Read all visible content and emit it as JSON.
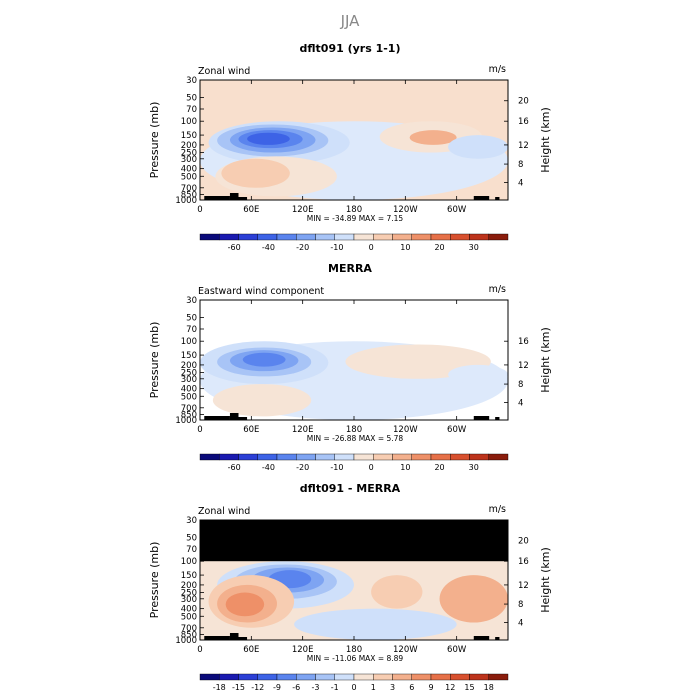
{
  "main_title": "JJA",
  "chart_data": [
    {
      "type": "heatmap",
      "title": "dflt091 (yrs 1-1)",
      "left_label": "Zonal wind",
      "units": "m/s",
      "ylabel": "Pressure (mb)",
      "ylabel_right": "Height (km)",
      "pressure_ticks": [
        "30",
        "50",
        "70",
        "100",
        "150",
        "200",
        "250",
        "300",
        "400",
        "500",
        "700",
        "850",
        "1000"
      ],
      "height_ticks": [
        "20",
        "16",
        "12",
        "8",
        "4"
      ],
      "lon_ticks": [
        "0",
        "60E",
        "120E",
        "180",
        "120W",
        "60W"
      ],
      "stats_text": "MIN = -34.89   MAX =   7.15",
      "colorbar_labels": [
        "-60",
        "-40",
        "-20",
        "-10",
        "0",
        "10",
        "20",
        "30"
      ],
      "colorbar_colors": [
        "#0a0a7a",
        "#1a1ab0",
        "#2b3fd6",
        "#3d63e6",
        "#5a84ee",
        "#7ea4f2",
        "#a8c4f6",
        "#cfe0fa",
        "#f6e4d6",
        "#f7cdb2",
        "#f3b08d",
        "#ee9068",
        "#e67048",
        "#d8502e",
        "#bd331b",
        "#8a1c0c"
      ],
      "field": {
        "base": "#f8dfcd",
        "blobs": [
          {
            "lon": 0,
            "lon2": 360,
            "p": 1000,
            "p2": 100,
            "c": "#dde9fb"
          },
          {
            "lon": 10,
            "lon2": 175,
            "p": 350,
            "p2": 100,
            "c": "#cfe0fa"
          },
          {
            "lon": 20,
            "lon2": 150,
            "p": 280,
            "p2": 110,
            "c": "#a8c4f6"
          },
          {
            "lon": 35,
            "lon2": 135,
            "p": 250,
            "p2": 120,
            "c": "#7ea4f2"
          },
          {
            "lon": 45,
            "lon2": 120,
            "p": 220,
            "p2": 130,
            "c": "#5a84ee"
          },
          {
            "lon": 55,
            "lon2": 105,
            "p": 200,
            "p2": 140,
            "c": "#3d63e6"
          },
          {
            "lon": 18,
            "lon2": 160,
            "p": 900,
            "p2": 280,
            "c": "#f6e4d6"
          },
          {
            "lon": 25,
            "lon2": 105,
            "p": 700,
            "p2": 300,
            "c": "#f7cdb2"
          },
          {
            "lon": 210,
            "lon2": 330,
            "p": 250,
            "p2": 100,
            "c": "#f6e4d6"
          },
          {
            "lon": 245,
            "lon2": 300,
            "p": 200,
            "p2": 130,
            "c": "#f3b08d"
          },
          {
            "lon": 290,
            "lon2": 360,
            "p": 300,
            "p2": 150,
            "c": "#cfe0fa"
          }
        ]
      }
    },
    {
      "type": "heatmap",
      "title": "MERRA",
      "left_label": "Eastward wind component",
      "units": "m/s",
      "ylabel": "Pressure (mb)",
      "ylabel_right": "Height (km)",
      "pressure_ticks": [
        "30",
        "50",
        "70",
        "100",
        "150",
        "200",
        "250",
        "300",
        "400",
        "500",
        "700",
        "850",
        "1000"
      ],
      "height_ticks": [
        "16",
        "12",
        "8",
        "4"
      ],
      "lon_ticks": [
        "0",
        "60E",
        "120E",
        "180",
        "120W",
        "60W"
      ],
      "stats_text": "MIN = -26.88   MAX =   5.78",
      "colorbar_labels": [
        "-60",
        "-40",
        "-20",
        "-10",
        "0",
        "10",
        "20",
        "30"
      ],
      "colorbar_colors": [
        "#0a0a7a",
        "#1a1ab0",
        "#2b3fd6",
        "#3d63e6",
        "#5a84ee",
        "#7ea4f2",
        "#a8c4f6",
        "#cfe0fa",
        "#f6e4d6",
        "#f7cdb2",
        "#f3b08d",
        "#ee9068",
        "#e67048",
        "#d8502e",
        "#bd331b",
        "#8a1c0c"
      ],
      "field": {
        "base": "#ffffff",
        "blobs": [
          {
            "lon": 0,
            "lon2": 360,
            "p": 1000,
            "p2": 100,
            "c": "#dde9fb"
          },
          {
            "lon": 0,
            "lon2": 150,
            "p": 350,
            "p2": 100,
            "c": "#cfe0fa"
          },
          {
            "lon": 20,
            "lon2": 130,
            "p": 280,
            "p2": 120,
            "c": "#a8c4f6"
          },
          {
            "lon": 35,
            "lon2": 115,
            "p": 240,
            "p2": 130,
            "c": "#7ea4f2"
          },
          {
            "lon": 50,
            "lon2": 100,
            "p": 210,
            "p2": 140,
            "c": "#5a84ee"
          },
          {
            "lon": 15,
            "lon2": 130,
            "p": 900,
            "p2": 350,
            "c": "#f6e4d6"
          },
          {
            "lon": 170,
            "lon2": 340,
            "p": 300,
            "p2": 110,
            "c": "#f6e4d6"
          },
          {
            "lon": 290,
            "lon2": 360,
            "p": 350,
            "p2": 200,
            "c": "#dde9fb"
          }
        ]
      }
    },
    {
      "type": "heatmap",
      "title": "dflt091 - MERRA",
      "left_label": "Zonal wind",
      "units": "m/s",
      "ylabel": "Pressure (mb)",
      "ylabel_right": "Height (km)",
      "pressure_ticks": [
        "30",
        "50",
        "70",
        "100",
        "150",
        "200",
        "250",
        "300",
        "400",
        "500",
        "700",
        "850",
        "1000"
      ],
      "height_ticks": [
        "20",
        "16",
        "12",
        "8",
        "4"
      ],
      "lon_ticks": [
        "0",
        "60E",
        "120E",
        "180",
        "120W",
        "60W"
      ],
      "stats_text": "MIN = -11.06   MAX =   8.89",
      "colorbar_labels": [
        "-18",
        "-15",
        "-12",
        "-9",
        "-6",
        "-3",
        "-1",
        "0",
        "1",
        "3",
        "6",
        "9",
        "12",
        "15",
        "18"
      ],
      "colorbar_colors": [
        "#0a0a7a",
        "#1a1ab0",
        "#2b3fd6",
        "#3d63e6",
        "#5a84ee",
        "#7ea4f2",
        "#a8c4f6",
        "#cfe0fa",
        "#f6e4d6",
        "#f7cdb2",
        "#f3b08d",
        "#ee9068",
        "#e67048",
        "#d8502e",
        "#bd331b",
        "#8a1c0c"
      ],
      "field": {
        "base": "#f6e4d6",
        "blobs": [
          {
            "lon": 0,
            "lon2": 360,
            "p": 1000,
            "p2": 100,
            "c": "#f6e4d6"
          },
          {
            "lon": 20,
            "lon2": 180,
            "p": 400,
            "p2": 100,
            "c": "#cfe0fa"
          },
          {
            "lon": 40,
            "lon2": 160,
            "p": 300,
            "p2": 110,
            "c": "#a8c4f6"
          },
          {
            "lon": 60,
            "lon2": 145,
            "p": 250,
            "p2": 120,
            "c": "#7ea4f2"
          },
          {
            "lon": 80,
            "lon2": 130,
            "p": 220,
            "p2": 130,
            "c": "#5a84ee"
          },
          {
            "lon": 10,
            "lon2": 110,
            "p": 700,
            "p2": 150,
            "c": "#f7cdb2"
          },
          {
            "lon": 20,
            "lon2": 90,
            "p": 600,
            "p2": 200,
            "c": "#f3b08d"
          },
          {
            "lon": 30,
            "lon2": 75,
            "p": 500,
            "p2": 250,
            "c": "#ee9068"
          },
          {
            "lon": 110,
            "lon2": 300,
            "p": 1000,
            "p2": 400,
            "c": "#cfe0fa"
          },
          {
            "lon": 280,
            "lon2": 360,
            "p": 600,
            "p2": 150,
            "c": "#f3b08d"
          },
          {
            "lon": 200,
            "lon2": 260,
            "p": 400,
            "p2": 150,
            "c": "#f7cdb2"
          }
        ],
        "mask_top_to": 100
      }
    }
  ]
}
